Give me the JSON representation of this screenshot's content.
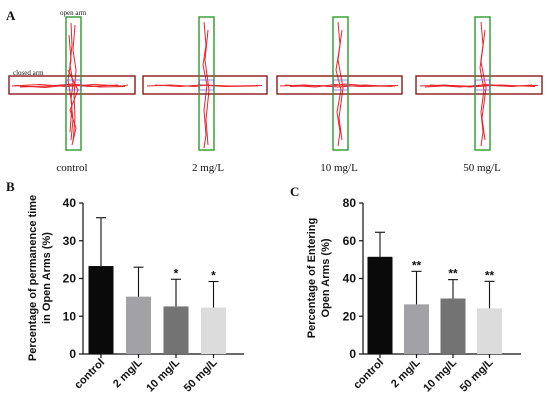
{
  "panel_a": {
    "letter": "A",
    "open_arm_label": "open arm",
    "closed_arm_label": "closed arm",
    "maze_labels": [
      "control",
      "2 mg/L",
      "10 mg/L",
      "50 mg/L"
    ],
    "colors": {
      "closed_arm": "#8b1a1a",
      "open_arm": "#2e9a2e",
      "track": "#e8232b",
      "center": "#7b6ad0"
    }
  },
  "chart_data": [
    {
      "type": "bar",
      "panel": "B",
      "categories": [
        "control",
        "2 mg/L",
        "10 mg/L",
        "50 mg/L"
      ],
      "values": [
        23.3,
        15.2,
        12.6,
        12.3
      ],
      "errors": [
        12.8,
        7.8,
        7.2,
        6.9
      ],
      "significance": [
        "",
        "",
        "*",
        "*"
      ],
      "colors": [
        "#0a0a0a",
        "#a2a2a6",
        "#737373",
        "#dcdcdc"
      ],
      "ylabel": "Percentage of permanence time\nin Open Arms (%)",
      "ylim": [
        0,
        40
      ],
      "yticks": [
        0,
        10,
        20,
        30,
        40
      ],
      "grid": false
    },
    {
      "type": "bar",
      "panel": "C",
      "categories": [
        "control",
        "2 mg/L",
        "10 mg/L",
        "50 mg/L"
      ],
      "values": [
        51.5,
        26.3,
        29.4,
        24.2
      ],
      "errors": [
        13.0,
        17.5,
        10.0,
        14.3
      ],
      "significance": [
        "",
        "**",
        "**",
        "**"
      ],
      "colors": [
        "#0a0a0a",
        "#a2a2a6",
        "#737373",
        "#dcdcdc"
      ],
      "ylabel": "Percentage of Entering\nOpen Arms (%)",
      "ylim": [
        0,
        80
      ],
      "yticks": [
        0,
        20,
        40,
        60,
        80
      ],
      "grid": false
    }
  ]
}
